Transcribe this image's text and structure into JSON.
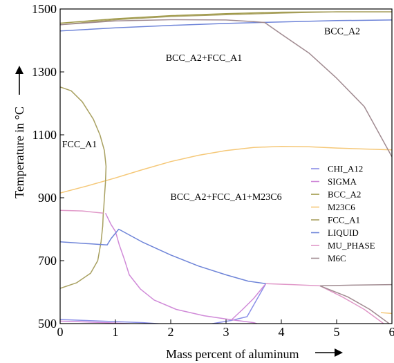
{
  "chart_data": {
    "type": "line",
    "title": "",
    "xlabel": "Mass percent of aluminum",
    "ylabel": "Temperature in °C",
    "xlim": [
      0,
      6
    ],
    "ylim": [
      500,
      1500
    ],
    "xticks": [
      "0",
      "1",
      "2",
      "3",
      "4",
      "5",
      "6"
    ],
    "yticks": [
      "500",
      "700",
      "900",
      "1100",
      "1300",
      "1500"
    ],
    "grid": false,
    "legend_position": "right",
    "region_labels": [
      {
        "text": "BCC_A2",
        "x": 5.1,
        "y": 1420
      },
      {
        "text": "BCC_A2+FCC_A1",
        "x": 2.6,
        "y": 1335
      },
      {
        "text": "FCC_A1",
        "x": 0.35,
        "y": 1060
      },
      {
        "text": "BCC_A2+FCC_A1+M23C6",
        "x": 3.0,
        "y": 893
      }
    ],
    "series": [
      {
        "name": "CHI_A12",
        "color": "#8a8ee8",
        "segments": [
          [
            [
              0,
              513
            ],
            [
              1.5,
              503
            ],
            [
              2.0,
              497
            ]
          ],
          [
            [
              2.65,
              497
            ],
            [
              3.1,
              510
            ],
            [
              3.38,
              522
            ],
            [
              3.72,
              627
            ]
          ]
        ]
      },
      {
        "name": "SIGMA",
        "color": "#d08ad8",
        "segments": [
          [
            [
              0,
              508
            ],
            [
              1.0,
              502
            ],
            [
              1.8,
              495
            ]
          ],
          [
            [
              0.82,
              851
            ],
            [
              0.92,
              815
            ],
            [
              1.0,
              793
            ],
            [
              1.07,
              750
            ],
            [
              1.16,
              705
            ],
            [
              1.25,
              655
            ],
            [
              1.45,
              610
            ],
            [
              1.7,
              575
            ],
            [
              2.1,
              545
            ],
            [
              2.6,
              525
            ],
            [
              3.1,
              512
            ],
            [
              3.5,
              503
            ],
            [
              3.65,
              495
            ]
          ],
          [
            [
              3.1,
              512
            ],
            [
              3.3,
              545
            ],
            [
              3.5,
              580
            ],
            [
              3.72,
              627
            ]
          ]
        ]
      },
      {
        "name": "BCC_A2",
        "color": "#a09a48",
        "segments": [
          [
            [
              0,
              1455
            ],
            [
              1,
              1469
            ],
            [
              2,
              1479
            ],
            [
              3,
              1485
            ],
            [
              4,
              1490
            ],
            [
              5,
              1491
            ],
            [
              6,
              1491
            ]
          ]
        ]
      },
      {
        "name": "M23C6",
        "color": "#f5c878",
        "segments": [
          [
            [
              0,
              915
            ],
            [
              0.5,
              938
            ],
            [
              1.0,
              963
            ],
            [
              1.5,
              990
            ],
            [
              2.0,
              1015
            ],
            [
              2.5,
              1035
            ],
            [
              3.0,
              1050
            ],
            [
              3.5,
              1060
            ],
            [
              4.0,
              1063
            ],
            [
              4.5,
              1062
            ],
            [
              5.0,
              1058
            ],
            [
              5.5,
              1055
            ],
            [
              6.0,
              1052
            ]
          ],
          [
            [
              5.8,
              535
            ],
            [
              6.0,
              532
            ]
          ]
        ]
      },
      {
        "name": "FCC_A1",
        "color": "#a8a060",
        "segments": [
          [
            [
              0,
              1252
            ],
            [
              0.2,
              1240
            ],
            [
              0.4,
              1205
            ],
            [
              0.6,
              1150
            ],
            [
              0.72,
              1100
            ],
            [
              0.8,
              1050
            ],
            [
              0.83,
              1000
            ],
            [
              0.82,
              950
            ],
            [
              0.8,
              900
            ],
            [
              0.79,
              870
            ],
            [
              0.78,
              851
            ],
            [
              0.77,
              810
            ],
            [
              0.74,
              760
            ],
            [
              0.68,
              700
            ],
            [
              0.55,
              660
            ],
            [
              0.3,
              630
            ],
            [
              0,
              612
            ]
          ],
          [
            [
              0,
              1450
            ],
            [
              1,
              1466
            ],
            [
              2,
              1476
            ],
            [
              3,
              1482
            ],
            [
              4,
              1487
            ],
            [
              5,
              1491
            ],
            [
              6,
              1491
            ]
          ]
        ]
      },
      {
        "name": "LIQUID",
        "color": "#6e84d8",
        "segments": [
          [
            [
              0,
              1430
            ],
            [
              1,
              1440
            ],
            [
              2,
              1448
            ],
            [
              3,
              1454
            ],
            [
              4,
              1459
            ],
            [
              5,
              1463
            ],
            [
              6,
              1465
            ]
          ],
          [
            [
              0,
              760
            ],
            [
              0.85,
              750
            ],
            [
              0.92,
              770
            ],
            [
              1.06,
              800
            ],
            [
              1.5,
              758
            ],
            [
              2.0,
              718
            ],
            [
              2.5,
              683
            ],
            [
              3.0,
              655
            ],
            [
              3.4,
              635
            ],
            [
              3.72,
              627
            ]
          ]
        ]
      },
      {
        "name": "MU_PHASE",
        "color": "#e098c8",
        "segments": [
          [
            [
              0,
              860
            ],
            [
              0.4,
              858
            ],
            [
              0.78,
              851
            ]
          ],
          [
            [
              3.72,
              627
            ],
            [
              4.2,
              624
            ],
            [
              4.7,
              620
            ]
          ],
          [
            [
              4.7,
              620
            ],
            [
              5.1,
              585
            ],
            [
              5.5,
              545
            ],
            [
              5.85,
              500
            ]
          ]
        ]
      },
      {
        "name": "M6C",
        "color": "#a08a90",
        "segments": [
          [
            [
              0,
              1450
            ],
            [
              1,
              1462
            ],
            [
              2,
              1466
            ],
            [
              3,
              1465
            ],
            [
              3.5,
              1460
            ],
            [
              3.7,
              1457
            ],
            [
              4.0,
              1420
            ],
            [
              4.5,
              1360
            ],
            [
              5.0,
              1280
            ],
            [
              5.5,
              1190
            ],
            [
              6.0,
              1030
            ]
          ],
          [
            [
              4.7,
              620
            ],
            [
              5.2,
              622
            ],
            [
              6.0,
              624
            ]
          ],
          [
            [
              4.7,
              620
            ],
            [
              5.2,
              585
            ],
            [
              5.6,
              545
            ],
            [
              5.95,
              500
            ]
          ]
        ]
      }
    ]
  }
}
